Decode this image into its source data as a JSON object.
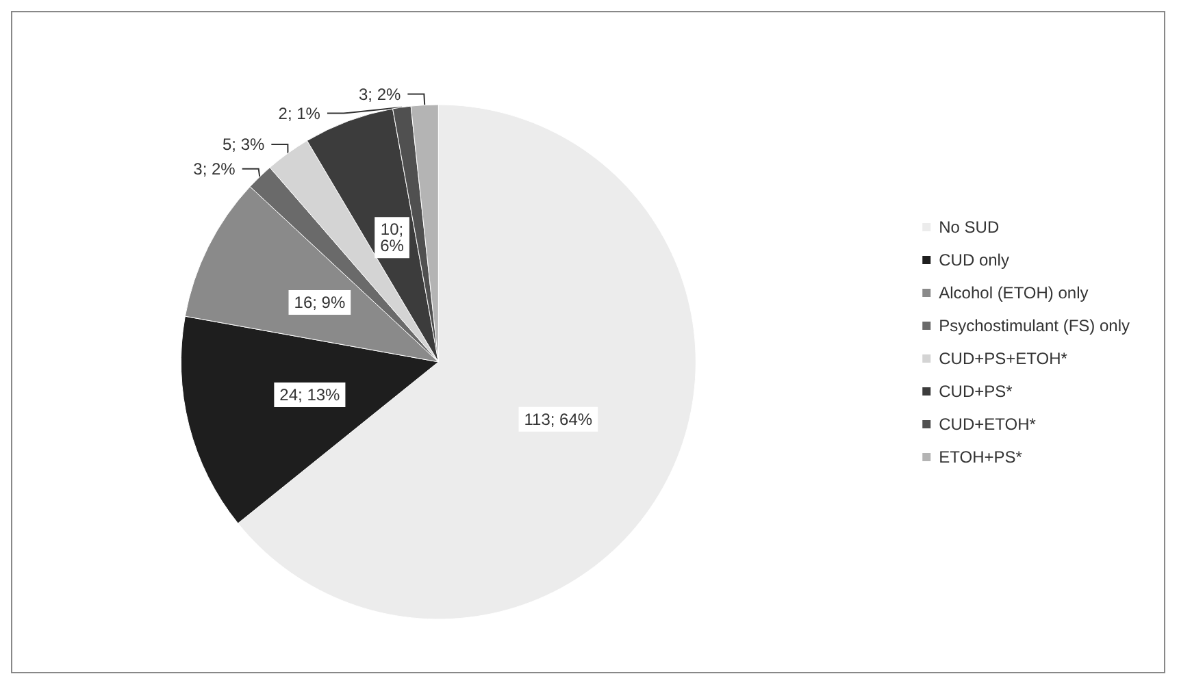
{
  "chart_data": {
    "type": "pie",
    "categories": [
      "No SUD",
      "CUD only",
      "Alcohol (ETOH) only",
      "Psychostimulant (FS) only",
      "CUD+PS+ETOH*",
      "CUD+PS*",
      "CUD+ETOH*",
      "ETOH+PS*"
    ],
    "values": [
      113,
      24,
      16,
      3,
      5,
      10,
      2,
      3
    ],
    "value_labels": [
      "113; 64%",
      "24; 13%",
      "16; 9%",
      "3; 2%",
      "5; 3%",
      "10;\n6%",
      "2; 1%",
      "3; 2%"
    ],
    "colors": [
      "#ececec",
      "#1e1e1e",
      "#8a8a8a",
      "#6a6a6a",
      "#d4d4d4",
      "#3c3c3c",
      "#505050",
      "#b4b4b4"
    ],
    "legend": "right"
  }
}
